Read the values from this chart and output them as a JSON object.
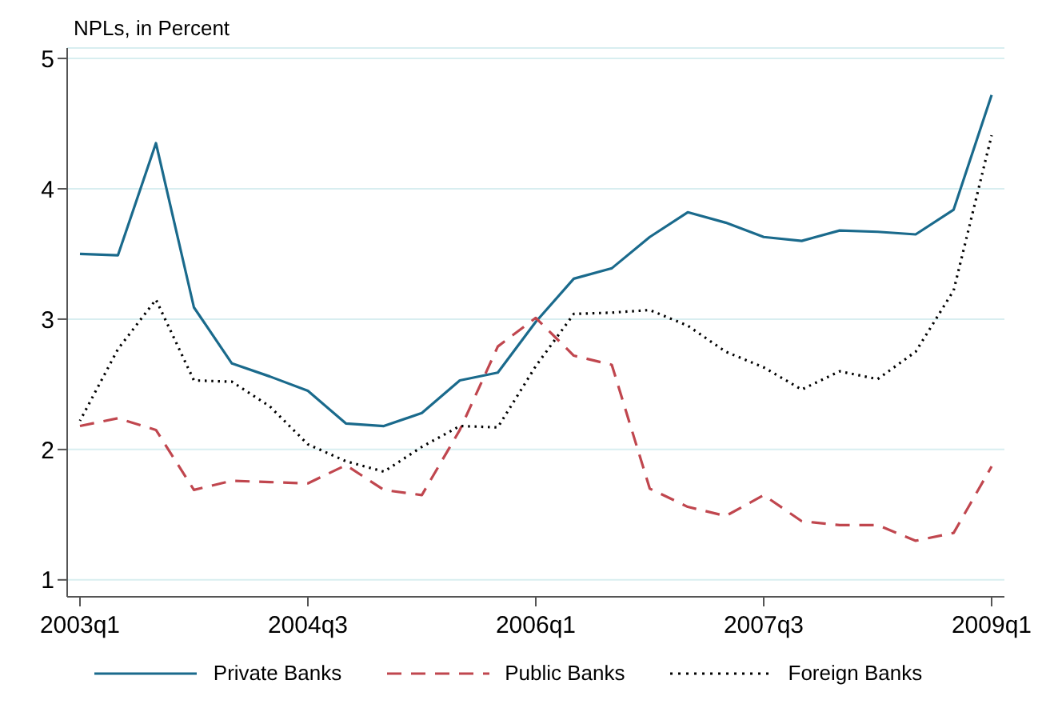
{
  "chart_data": {
    "type": "line",
    "ylabel": "NPLs, in Percent",
    "categories": [
      "2003q1",
      null,
      null,
      null,
      null,
      null,
      "2004q3",
      null,
      null,
      null,
      null,
      null,
      "2006q1",
      null,
      null,
      null,
      null,
      null,
      "2007q3",
      null,
      null,
      null,
      null,
      null,
      "2009q1"
    ],
    "series": [
      {
        "name": "Private Banks",
        "color": "#1a6a8c",
        "line_style": "solid",
        "values": [
          3.5,
          3.49,
          4.35,
          3.09,
          2.66,
          2.56,
          2.45,
          2.2,
          2.18,
          2.28,
          2.53,
          2.59,
          2.98,
          3.31,
          3.39,
          3.63,
          3.82,
          3.74,
          3.63,
          3.6,
          3.68,
          3.67,
          3.65,
          3.84,
          4.72
        ]
      },
      {
        "name": "Public Banks",
        "color": "#c0464e",
        "line_style": "dashed",
        "values": [
          2.18,
          2.24,
          2.15,
          1.69,
          1.76,
          1.75,
          1.74,
          1.88,
          1.69,
          1.65,
          2.15,
          2.79,
          3.01,
          2.72,
          2.65,
          1.7,
          1.56,
          1.49,
          1.65,
          1.45,
          1.42,
          1.42,
          1.3,
          1.36,
          1.87
        ]
      },
      {
        "name": "Foreign Banks",
        "color": "#000000",
        "line_style": "dotted",
        "values": [
          2.22,
          2.77,
          3.15,
          2.53,
          2.52,
          2.33,
          2.04,
          1.91,
          1.83,
          2.02,
          2.18,
          2.17,
          2.64,
          3.04,
          3.05,
          3.07,
          2.95,
          2.75,
          2.63,
          2.46,
          2.6,
          2.54,
          2.75,
          3.22,
          4.41
        ]
      }
    ],
    "ylim": [
      0.87,
      5.08
    ],
    "yticks": [
      1,
      2,
      3,
      4,
      5
    ],
    "grid": "y",
    "legend": "bottom",
    "marker": "none"
  }
}
